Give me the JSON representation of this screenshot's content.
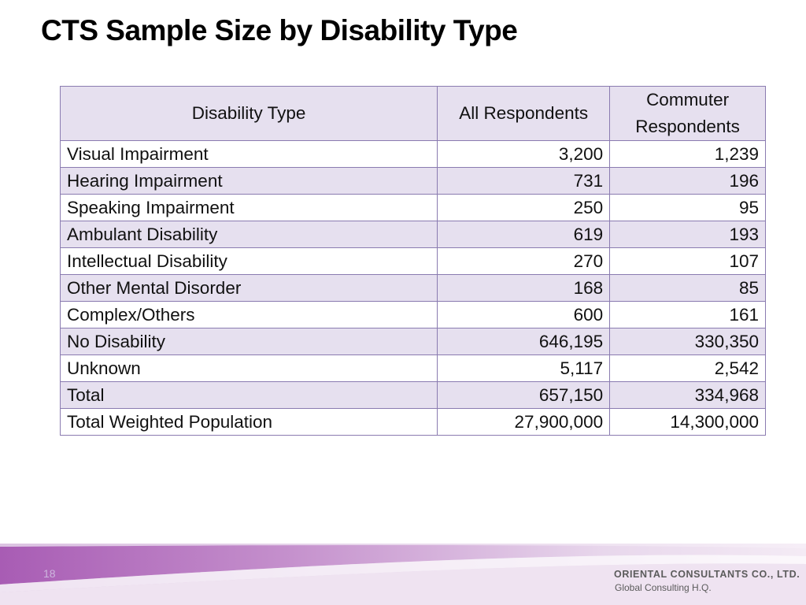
{
  "slide": {
    "title": "CTS Sample Size by Disability Type",
    "page_number": "18"
  },
  "table": {
    "headers": {
      "type": "Disability Type",
      "all": "All Respondents",
      "commuter_line1": "Commuter",
      "commuter_line2": "Respondents"
    },
    "rows": [
      {
        "type": "Visual Impairment",
        "all": "3,200",
        "commuter": "1,239"
      },
      {
        "type": "Hearing Impairment",
        "all": "731",
        "commuter": "196"
      },
      {
        "type": "Speaking Impairment",
        "all": "250",
        "commuter": "95"
      },
      {
        "type": "Ambulant Disability",
        "all": "619",
        "commuter": "193"
      },
      {
        "type": "Intellectual Disability",
        "all": "270",
        "commuter": "107"
      },
      {
        "type": "Other Mental Disorder",
        "all": "168",
        "commuter": "85"
      },
      {
        "type": "Complex/Others",
        "all": "600",
        "commuter": "161"
      },
      {
        "type": "No Disability",
        "all": "646,195",
        "commuter": "330,350"
      },
      {
        "type": "Unknown",
        "all": "5,117",
        "commuter": "2,542"
      },
      {
        "type": "Total",
        "all": "657,150",
        "commuter": "334,968"
      },
      {
        "type": "Total Weighted Population",
        "all": "27,900,000",
        "commuter": "14,300,000"
      }
    ]
  },
  "footer": {
    "company": "ORIENTAL CONSULTANTS CO., LTD.",
    "subtitle": "Global Consulting H.Q."
  },
  "colors": {
    "table_border": "#8a7bb0",
    "band_stripe": "#e6e0ef",
    "footer_purple": "#a85cb4"
  }
}
